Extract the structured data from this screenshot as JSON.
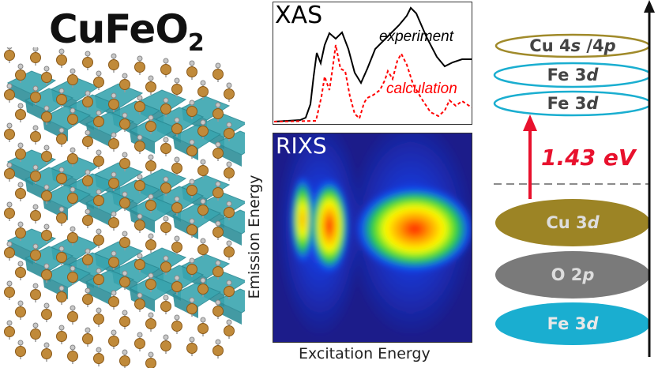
{
  "title": {
    "main": "CuFeO",
    "subscript": "2"
  },
  "xas": {
    "label": "XAS",
    "experiment": "experiment",
    "calculation": "calculation",
    "experiment_color": "#000000",
    "calculation_color": "#ff0000"
  },
  "rixs": {
    "label": "RIXS",
    "xlabel": "Excitation Energy",
    "ylabel": "Emission Energy"
  },
  "levels": {
    "unoccupied": [
      {
        "name": "Cu 4",
        "orb": "s",
        "sep": " /4",
        "orb2": "p",
        "color": "#a08a2a"
      },
      {
        "name": "Fe 3",
        "orb": "d",
        "color": "#1aaed0"
      },
      {
        "name": "Fe 3",
        "orb": "d",
        "color": "#1aaed0"
      }
    ],
    "occupied": [
      {
        "name": "Cu 3",
        "orb": "d",
        "color": "#9c8425"
      },
      {
        "name": "O 2",
        "orb": "p",
        "color": "#7a7a7a"
      },
      {
        "name": "Fe 3",
        "orb": "d",
        "color": "#1aaed0"
      }
    ],
    "gap": "1.43 eV",
    "gap_color": "#e8112d"
  },
  "colors": {
    "octahedra": "#3aa6b0",
    "cu_atom": "#c08a3a",
    "o_atom": "#c8c8c8"
  }
}
